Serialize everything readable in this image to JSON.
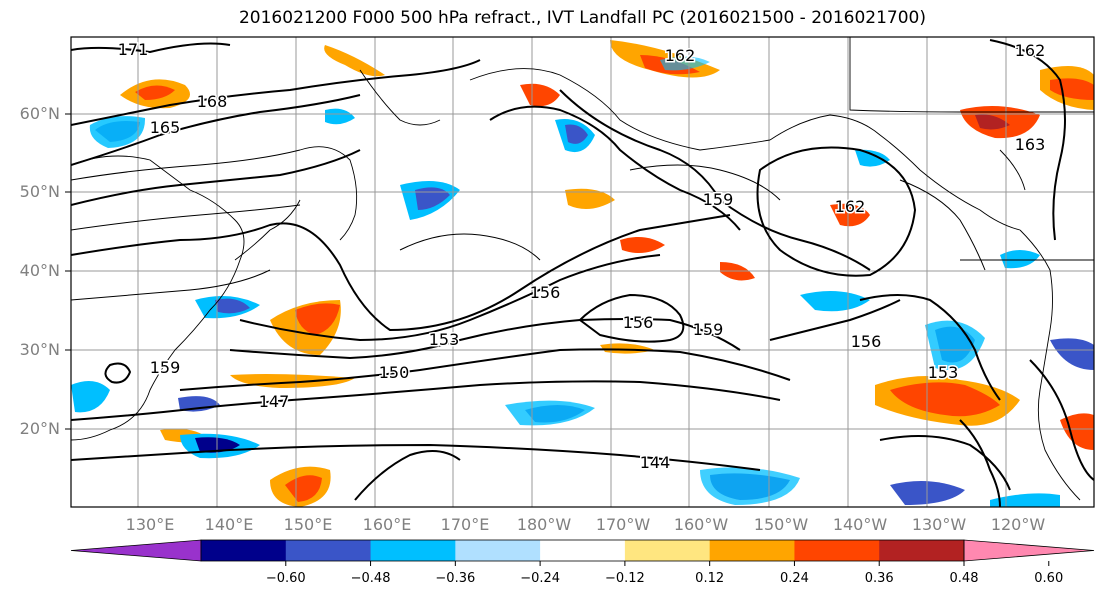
{
  "title": "2016021200 F000 500 hPa refract., IVT Landfall PC (2016021500 - 2016021700)",
  "lat_labels": [
    "60°N",
    "50°N",
    "40°N",
    "30°N",
    "20°N"
  ],
  "lon_labels": [
    "130°E",
    "140°E",
    "150°E",
    "160°E",
    "170°E",
    "180°W",
    "170°W",
    "160°W",
    "150°W",
    "140°W",
    "130°W",
    "120°W"
  ],
  "contour_labels": [
    "171",
    "168",
    "165",
    "162",
    "162",
    "163",
    "159",
    "162",
    "156",
    "156",
    "159",
    "153",
    "156",
    "150",
    "153",
    "159",
    "147",
    "144"
  ],
  "colorbar": {
    "ticks": [
      "−0.60",
      "−0.48",
      "−0.36",
      "−0.24",
      "−0.12",
      "0.12",
      "0.24",
      "0.36",
      "0.48",
      "0.60"
    ],
    "colors": [
      "#9932cc",
      "#00008b",
      "#3a55c8",
      "#00bfff",
      "#b0e0ff",
      "#ffffff",
      "#ffe680",
      "#ffa500",
      "#ff4500",
      "#b22222",
      "#ff88b0"
    ]
  }
}
